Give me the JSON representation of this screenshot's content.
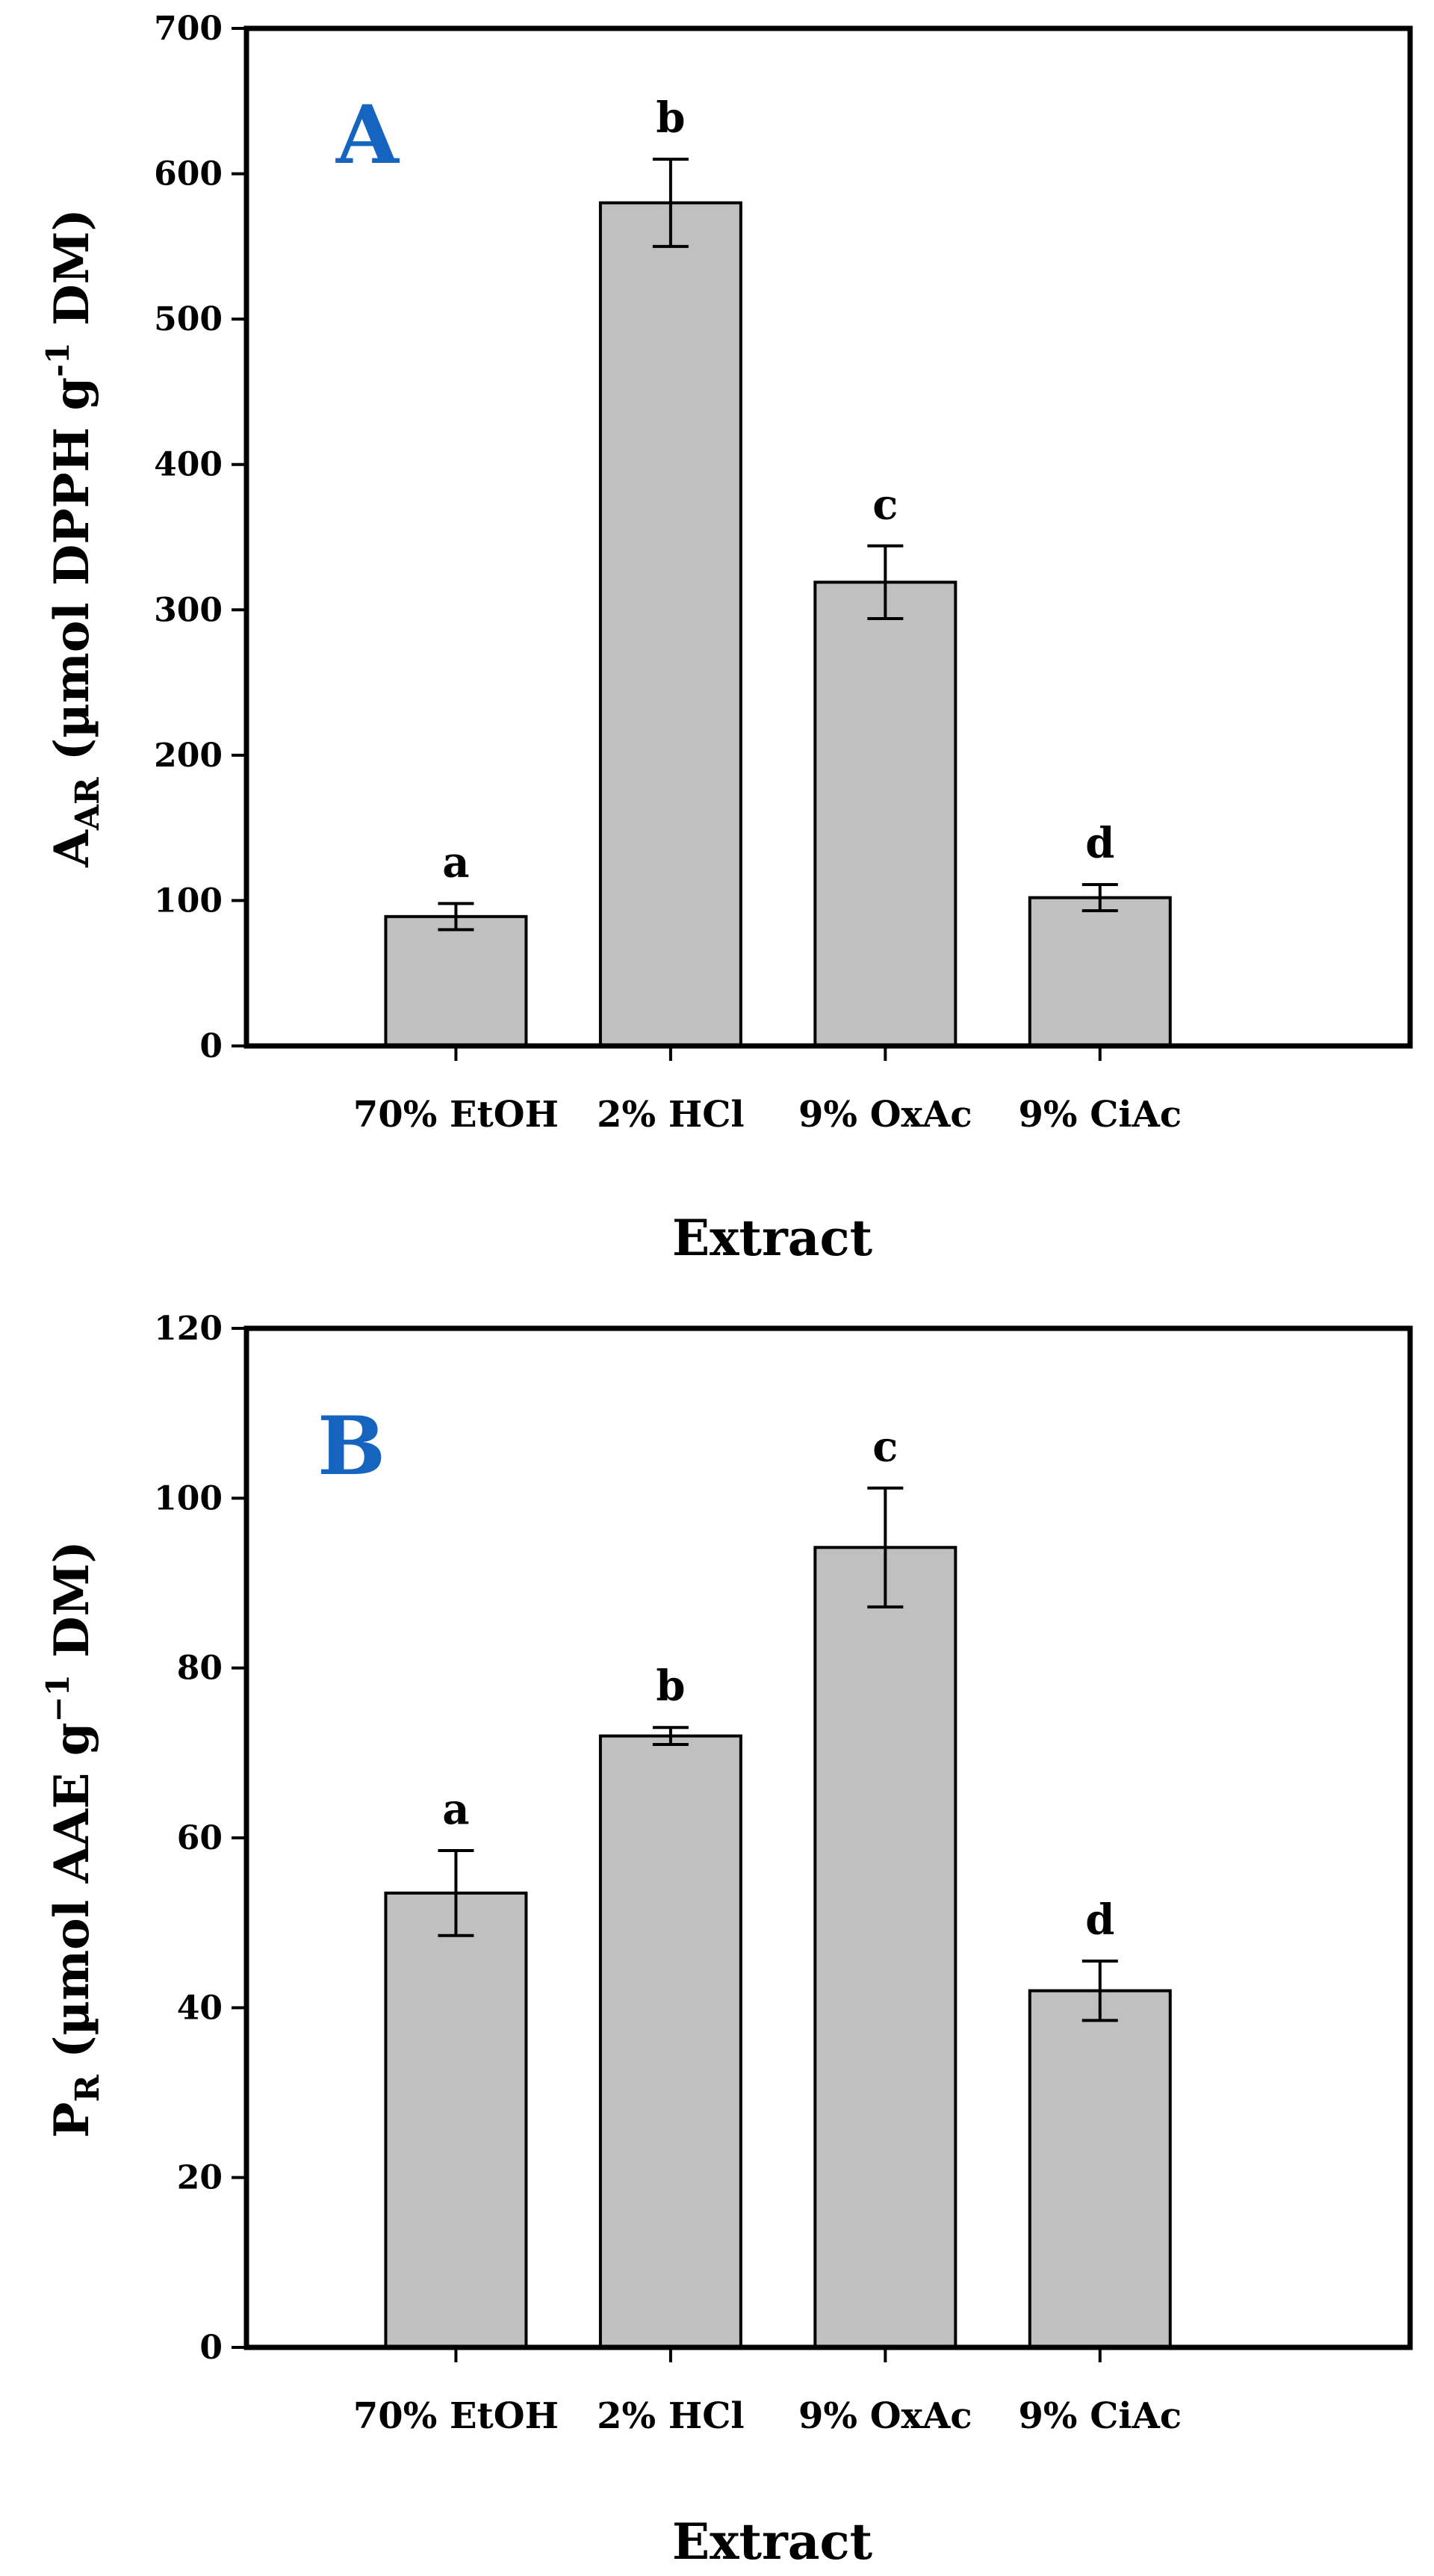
{
  "panel_color": "#1565c0",
  "chart_data": [
    {
      "type": "bar",
      "panel_label": "A",
      "categories": [
        "70% EtOH",
        "2% HCl",
        "9% OxAc",
        "9% CiAc"
      ],
      "values": [
        89,
        580,
        319,
        102
      ],
      "errors": [
        9,
        30,
        25,
        9
      ],
      "significance": [
        "a",
        "b",
        "c",
        "d"
      ],
      "ylim": [
        0,
        700
      ],
      "yticks": [
        0,
        100,
        200,
        300,
        400,
        500,
        600,
        700
      ],
      "ylabel": {
        "main": "A",
        "sub": "AR",
        "rest": " (µmol DPPH g",
        "sup": "-1",
        "end": " DM)"
      },
      "xlabel": "Extract",
      "bar_color": "#c0c0c0"
    },
    {
      "type": "bar",
      "panel_label": "B",
      "categories": [
        "70% EtOH",
        "2% HCl",
        "9% OxAc",
        "9% CiAc"
      ],
      "values": [
        53.5,
        72,
        94.2,
        42
      ],
      "errors": [
        5,
        1,
        7,
        3.5
      ],
      "significance": [
        "a",
        "b",
        "c",
        "d"
      ],
      "ylim": [
        0,
        120
      ],
      "yticks": [
        0,
        20,
        40,
        60,
        80,
        100,
        120
      ],
      "ylabel": {
        "main": "P",
        "sub": "R",
        "rest": " (µmol AAE g",
        "sup": "−1",
        "end": " DM)"
      },
      "xlabel": "Extract",
      "bar_color": "#c0c0c0"
    }
  ]
}
